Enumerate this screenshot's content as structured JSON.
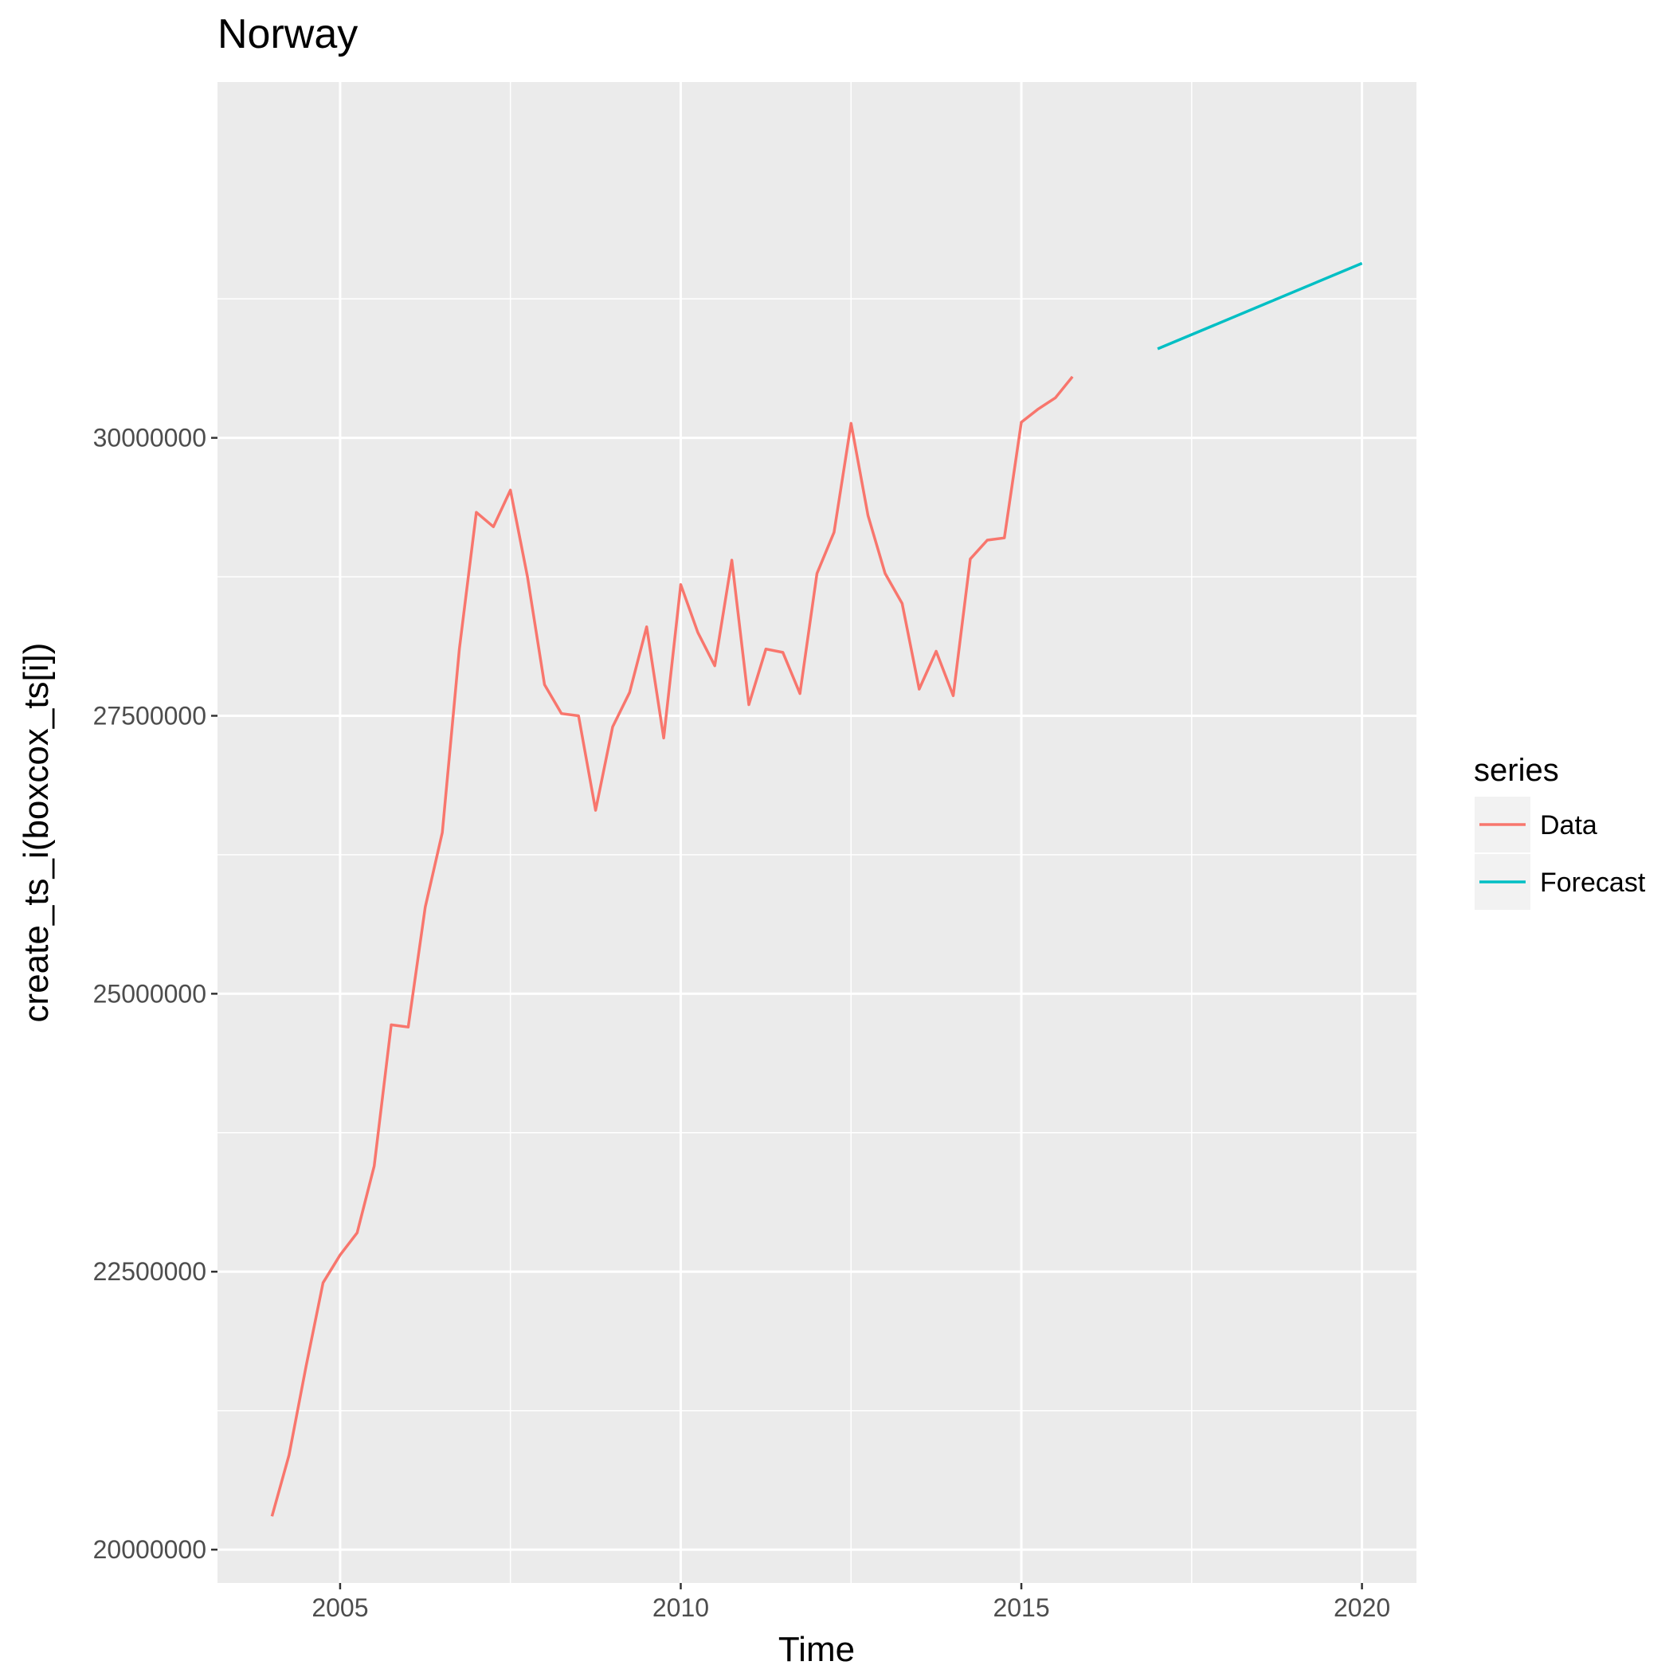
{
  "chart_data": {
    "type": "line",
    "title": "Norway",
    "xlabel": "Time",
    "ylabel": "create_ts_i(boxcox_ts[i])",
    "xlim": [
      2003.2,
      2020.8
    ],
    "ylim": [
      19700000,
      33200000
    ],
    "x_ticks": [
      2005,
      2010,
      2015,
      2020
    ],
    "x_minor_ticks": [
      2007.5,
      2012.5,
      2017.5
    ],
    "y_ticks": [
      20000000,
      22500000,
      25000000,
      27500000,
      30000000
    ],
    "y_minor_ticks": [
      21250000,
      23750000,
      26250000,
      28750000,
      31250000
    ],
    "grid": true,
    "legend": {
      "title": "series",
      "position": "right"
    },
    "series": [
      {
        "name": "Data",
        "color": "#F8766D",
        "x": [
          2004.0,
          2004.25,
          2004.5,
          2004.75,
          2005.0,
          2005.25,
          2005.5,
          2005.75,
          2006.0,
          2006.25,
          2006.5,
          2006.75,
          2007.0,
          2007.25,
          2007.5,
          2007.75,
          2008.0,
          2008.25,
          2008.5,
          2008.75,
          2009.0,
          2009.25,
          2009.5,
          2009.75,
          2010.0,
          2010.25,
          2010.5,
          2010.75,
          2011.0,
          2011.25,
          2011.5,
          2011.75,
          2012.0,
          2012.25,
          2012.5,
          2012.75,
          2013.0,
          2013.25,
          2013.5,
          2013.75,
          2014.0,
          2014.25,
          2014.5,
          2014.75,
          2015.0,
          2015.25,
          2015.5,
          2015.75
        ],
        "y": [
          20300000,
          20850000,
          21650000,
          22400000,
          22650000,
          22850000,
          23450000,
          24720000,
          24700000,
          25780000,
          26450000,
          28100000,
          29330000,
          29200000,
          29530000,
          28750000,
          27780000,
          27520000,
          27500000,
          26650000,
          27400000,
          27710000,
          28300000,
          27300000,
          28680000,
          28250000,
          27950000,
          28900000,
          27600000,
          28100000,
          28070000,
          27700000,
          28780000,
          29150000,
          30130000,
          29300000,
          28780000,
          28510000,
          27740000,
          28080000,
          27680000,
          28910000,
          29080000,
          29100000,
          30140000,
          30260000,
          30360000,
          30550000
        ]
      },
      {
        "name": "Forecast",
        "color": "#00BFC4",
        "x": [
          2017.0,
          2020.0
        ],
        "y": [
          30800000,
          31570000
        ]
      }
    ]
  }
}
